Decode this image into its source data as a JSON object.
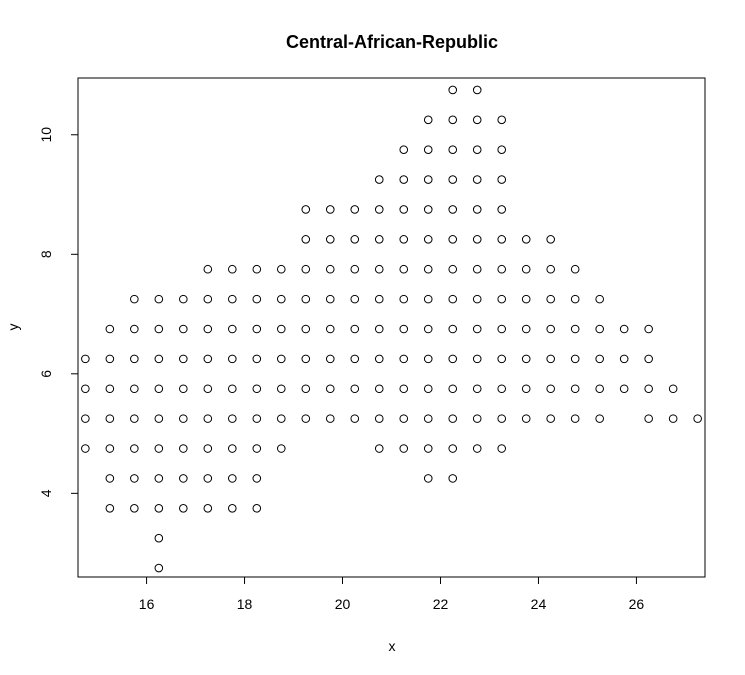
{
  "chart_data": {
    "type": "scatter",
    "title": "Central-African-Republic",
    "xlabel": "x",
    "ylabel": "y",
    "xlim": [
      14.6,
      27.4
    ],
    "ylim": [
      2.6,
      10.95
    ],
    "xticks": [
      16,
      18,
      20,
      22,
      24,
      26
    ],
    "yticks": [
      4,
      6,
      8,
      10
    ],
    "grid": false,
    "legend": "none",
    "marker": "open-circle",
    "point_color": "#000000",
    "points": [
      [
        22.25,
        10.75
      ],
      [
        22.75,
        10.75
      ],
      [
        21.75,
        10.25
      ],
      [
        22.25,
        10.25
      ],
      [
        22.75,
        10.25
      ],
      [
        23.25,
        10.25
      ],
      [
        21.25,
        9.75
      ],
      [
        21.75,
        9.75
      ],
      [
        22.25,
        9.75
      ],
      [
        22.75,
        9.75
      ],
      [
        23.25,
        9.75
      ],
      [
        20.75,
        9.25
      ],
      [
        21.25,
        9.25
      ],
      [
        21.75,
        9.25
      ],
      [
        22.25,
        9.25
      ],
      [
        22.75,
        9.25
      ],
      [
        23.25,
        9.25
      ],
      [
        19.25,
        8.75
      ],
      [
        19.75,
        8.75
      ],
      [
        20.25,
        8.75
      ],
      [
        20.75,
        8.75
      ],
      [
        21.25,
        8.75
      ],
      [
        21.75,
        8.75
      ],
      [
        22.25,
        8.75
      ],
      [
        22.75,
        8.75
      ],
      [
        23.25,
        8.75
      ],
      [
        19.25,
        8.25
      ],
      [
        19.75,
        8.25
      ],
      [
        20.25,
        8.25
      ],
      [
        20.75,
        8.25
      ],
      [
        21.25,
        8.25
      ],
      [
        21.75,
        8.25
      ],
      [
        22.25,
        8.25
      ],
      [
        22.75,
        8.25
      ],
      [
        23.25,
        8.25
      ],
      [
        23.75,
        8.25
      ],
      [
        24.25,
        8.25
      ],
      [
        17.25,
        7.75
      ],
      [
        17.75,
        7.75
      ],
      [
        18.25,
        7.75
      ],
      [
        18.75,
        7.75
      ],
      [
        19.25,
        7.75
      ],
      [
        19.75,
        7.75
      ],
      [
        20.25,
        7.75
      ],
      [
        20.75,
        7.75
      ],
      [
        21.25,
        7.75
      ],
      [
        21.75,
        7.75
      ],
      [
        22.25,
        7.75
      ],
      [
        22.75,
        7.75
      ],
      [
        23.25,
        7.75
      ],
      [
        23.75,
        7.75
      ],
      [
        24.25,
        7.75
      ],
      [
        24.75,
        7.75
      ],
      [
        15.75,
        7.25
      ],
      [
        16.25,
        7.25
      ],
      [
        16.75,
        7.25
      ],
      [
        17.25,
        7.25
      ],
      [
        17.75,
        7.25
      ],
      [
        18.25,
        7.25
      ],
      [
        18.75,
        7.25
      ],
      [
        19.25,
        7.25
      ],
      [
        19.75,
        7.25
      ],
      [
        20.25,
        7.25
      ],
      [
        20.75,
        7.25
      ],
      [
        21.25,
        7.25
      ],
      [
        21.75,
        7.25
      ],
      [
        22.25,
        7.25
      ],
      [
        22.75,
        7.25
      ],
      [
        23.25,
        7.25
      ],
      [
        23.75,
        7.25
      ],
      [
        24.25,
        7.25
      ],
      [
        24.75,
        7.25
      ],
      [
        25.25,
        7.25
      ],
      [
        15.25,
        6.75
      ],
      [
        15.75,
        6.75
      ],
      [
        16.25,
        6.75
      ],
      [
        16.75,
        6.75
      ],
      [
        17.25,
        6.75
      ],
      [
        17.75,
        6.75
      ],
      [
        18.25,
        6.75
      ],
      [
        18.75,
        6.75
      ],
      [
        19.25,
        6.75
      ],
      [
        19.75,
        6.75
      ],
      [
        20.25,
        6.75
      ],
      [
        20.75,
        6.75
      ],
      [
        21.25,
        6.75
      ],
      [
        21.75,
        6.75
      ],
      [
        22.25,
        6.75
      ],
      [
        22.75,
        6.75
      ],
      [
        23.25,
        6.75
      ],
      [
        23.75,
        6.75
      ],
      [
        24.25,
        6.75
      ],
      [
        24.75,
        6.75
      ],
      [
        25.25,
        6.75
      ],
      [
        25.75,
        6.75
      ],
      [
        26.25,
        6.75
      ],
      [
        14.75,
        6.25
      ],
      [
        15.25,
        6.25
      ],
      [
        15.75,
        6.25
      ],
      [
        16.25,
        6.25
      ],
      [
        16.75,
        6.25
      ],
      [
        17.25,
        6.25
      ],
      [
        17.75,
        6.25
      ],
      [
        18.25,
        6.25
      ],
      [
        18.75,
        6.25
      ],
      [
        19.25,
        6.25
      ],
      [
        19.75,
        6.25
      ],
      [
        20.25,
        6.25
      ],
      [
        20.75,
        6.25
      ],
      [
        21.25,
        6.25
      ],
      [
        21.75,
        6.25
      ],
      [
        22.25,
        6.25
      ],
      [
        22.75,
        6.25
      ],
      [
        23.25,
        6.25
      ],
      [
        23.75,
        6.25
      ],
      [
        24.25,
        6.25
      ],
      [
        24.75,
        6.25
      ],
      [
        25.25,
        6.25
      ],
      [
        25.75,
        6.25
      ],
      [
        26.25,
        6.25
      ],
      [
        14.75,
        5.75
      ],
      [
        15.25,
        5.75
      ],
      [
        15.75,
        5.75
      ],
      [
        16.25,
        5.75
      ],
      [
        16.75,
        5.75
      ],
      [
        17.25,
        5.75
      ],
      [
        17.75,
        5.75
      ],
      [
        18.25,
        5.75
      ],
      [
        18.75,
        5.75
      ],
      [
        19.25,
        5.75
      ],
      [
        19.75,
        5.75
      ],
      [
        20.25,
        5.75
      ],
      [
        20.75,
        5.75
      ],
      [
        21.25,
        5.75
      ],
      [
        21.75,
        5.75
      ],
      [
        22.25,
        5.75
      ],
      [
        22.75,
        5.75
      ],
      [
        23.25,
        5.75
      ],
      [
        23.75,
        5.75
      ],
      [
        24.25,
        5.75
      ],
      [
        24.75,
        5.75
      ],
      [
        25.25,
        5.75
      ],
      [
        25.75,
        5.75
      ],
      [
        26.25,
        5.75
      ],
      [
        26.75,
        5.75
      ],
      [
        14.75,
        5.25
      ],
      [
        15.25,
        5.25
      ],
      [
        15.75,
        5.25
      ],
      [
        16.25,
        5.25
      ],
      [
        16.75,
        5.25
      ],
      [
        17.25,
        5.25
      ],
      [
        17.75,
        5.25
      ],
      [
        18.25,
        5.25
      ],
      [
        18.75,
        5.25
      ],
      [
        19.25,
        5.25
      ],
      [
        19.75,
        5.25
      ],
      [
        20.25,
        5.25
      ],
      [
        20.75,
        5.25
      ],
      [
        21.25,
        5.25
      ],
      [
        21.75,
        5.25
      ],
      [
        22.25,
        5.25
      ],
      [
        22.75,
        5.25
      ],
      [
        23.25,
        5.25
      ],
      [
        23.75,
        5.25
      ],
      [
        24.25,
        5.25
      ],
      [
        24.75,
        5.25
      ],
      [
        25.25,
        5.25
      ],
      [
        26.25,
        5.25
      ],
      [
        26.75,
        5.25
      ],
      [
        27.25,
        5.25
      ],
      [
        14.75,
        4.75
      ],
      [
        15.25,
        4.75
      ],
      [
        15.75,
        4.75
      ],
      [
        16.25,
        4.75
      ],
      [
        16.75,
        4.75
      ],
      [
        17.25,
        4.75
      ],
      [
        17.75,
        4.75
      ],
      [
        18.25,
        4.75
      ],
      [
        18.75,
        4.75
      ],
      [
        20.75,
        4.75
      ],
      [
        21.25,
        4.75
      ],
      [
        21.75,
        4.75
      ],
      [
        22.25,
        4.75
      ],
      [
        22.75,
        4.75
      ],
      [
        23.25,
        4.75
      ],
      [
        15.25,
        4.25
      ],
      [
        15.75,
        4.25
      ],
      [
        16.25,
        4.25
      ],
      [
        16.75,
        4.25
      ],
      [
        17.25,
        4.25
      ],
      [
        17.75,
        4.25
      ],
      [
        18.25,
        4.25
      ],
      [
        21.75,
        4.25
      ],
      [
        22.25,
        4.25
      ],
      [
        15.25,
        3.75
      ],
      [
        15.75,
        3.75
      ],
      [
        16.25,
        3.75
      ],
      [
        16.75,
        3.75
      ],
      [
        17.25,
        3.75
      ],
      [
        17.75,
        3.75
      ],
      [
        18.25,
        3.75
      ],
      [
        16.25,
        3.25
      ],
      [
        16.25,
        2.75
      ]
    ]
  }
}
